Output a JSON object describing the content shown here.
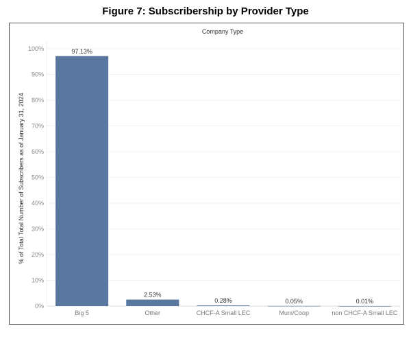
{
  "chart_data": {
    "type": "bar",
    "title": "Figure 7: Subscribership by Provider Type",
    "header": "Company Type",
    "ylabel": "% of Total Total Number of Subscribers as of January 31, 2024",
    "xlabel": "",
    "categories": [
      "Big 5",
      "Other",
      "CHCF-A Small LEC",
      "Muni/Coop",
      "non CHCF-A Small LEC"
    ],
    "values": [
      97.13,
      2.53,
      0.28,
      0.05,
      0.01
    ],
    "data_labels": [
      "97.13%",
      "2.53%",
      "0.28%",
      "0.05%",
      "0.01%"
    ],
    "ylim": [
      0,
      100
    ],
    "yticks": [
      "0%",
      "10%",
      "20%",
      "30%",
      "40%",
      "50%",
      "60%",
      "70%",
      "80%",
      "90%",
      "100%"
    ],
    "grid": true,
    "bar_color": "#59779f"
  }
}
